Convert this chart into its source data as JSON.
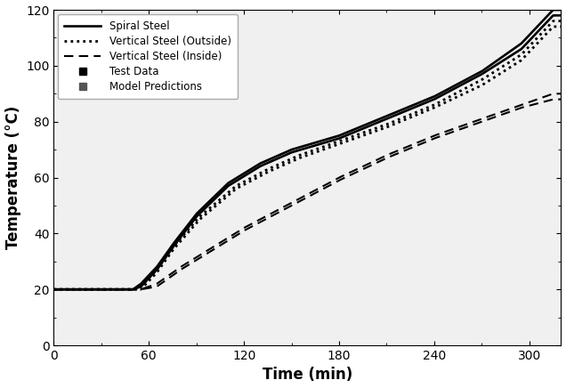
{
  "title": "",
  "xlabel": "Time (min)",
  "ylabel": "Temperature (°C)",
  "xlim": [
    0,
    320
  ],
  "ylim": [
    0,
    120
  ],
  "xticks": [
    0,
    60,
    120,
    180,
    240,
    300
  ],
  "yticks": [
    0,
    20,
    40,
    60,
    80,
    100,
    120
  ],
  "background_color": "#f0f0f0",
  "figsize": [
    6.36,
    4.36
  ],
  "dpi": 100,
  "legend": {
    "spiral_steel": "Spiral Steel",
    "vert_outside": "Vertical Steel (Outside)",
    "vert_inside": "Vertical Steel (Inside)",
    "test_data": "Test Data",
    "model_pred": "Model Predictions"
  }
}
